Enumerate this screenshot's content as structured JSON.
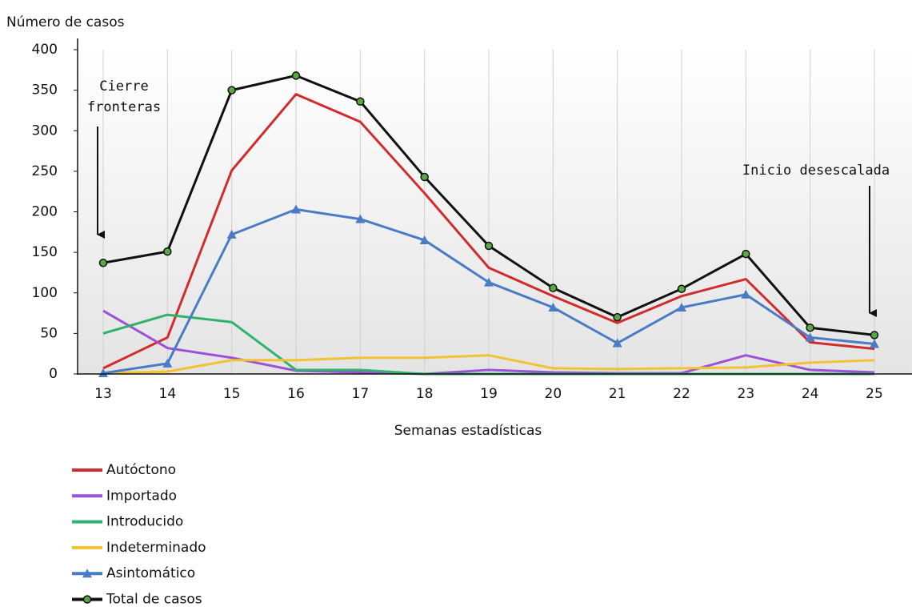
{
  "chart_data": {
    "type": "line",
    "y_label": "Número de casos",
    "x_label": "Semanas estadísticas",
    "categories": [
      "13",
      "14",
      "15",
      "16",
      "17",
      "18",
      "19",
      "20",
      "21",
      "22",
      "23",
      "24",
      "25"
    ],
    "series": [
      {
        "name": "Autóctono",
        "color": "#d12b2b",
        "values": [
          7,
          45,
          251,
          345,
          311,
          223,
          131,
          96,
          63,
          96,
          117,
          39,
          31
        ]
      },
      {
        "name": "Importado",
        "color": "#9c51d8",
        "values": [
          78,
          32,
          20,
          4,
          2,
          0,
          5,
          2,
          1,
          1,
          23,
          5,
          2
        ]
      },
      {
        "name": "Introducido",
        "color": "#2fb36c",
        "values": [
          50,
          73,
          64,
          5,
          5,
          0,
          0,
          0,
          0,
          0,
          0,
          0,
          0
        ]
      },
      {
        "name": "Indeterminado",
        "color": "#f3c232",
        "values": [
          1,
          3,
          17,
          17,
          20,
          20,
          23,
          7,
          6,
          7,
          8,
          14,
          17
        ]
      },
      {
        "name": "Asintomático",
        "color": "#4a7cc5",
        "marker": "triangle",
        "values": [
          1,
          13,
          172,
          203,
          191,
          165,
          113,
          82,
          38,
          82,
          98,
          45,
          37
        ]
      },
      {
        "name": "Total de casos",
        "color": "#111111",
        "marker": "circle",
        "marker_color": "#5aa845",
        "values": [
          137,
          151,
          350,
          368,
          336,
          243,
          158,
          106,
          70,
          105,
          148,
          57,
          48
        ]
      }
    ],
    "ylim": [
      0,
      400
    ],
    "yticks": [
      0,
      50,
      100,
      150,
      200,
      250,
      300,
      350,
      400
    ],
    "grid": "x",
    "legend": "bottom-left",
    "annotations": [
      {
        "lines": [
          "Cierre",
          "fronteras"
        ]
      },
      {
        "lines": [
          "Inicio desescalada"
        ]
      }
    ]
  }
}
